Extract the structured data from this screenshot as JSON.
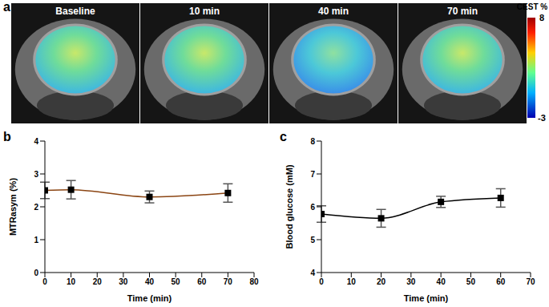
{
  "chart_data": [
    {
      "type": "image_series",
      "panel": "a",
      "frames": [
        "Baseline",
        "10 min",
        "40 min",
        "70 min"
      ],
      "colorbar_title": "CEST %",
      "colorbar_range": [
        -3,
        8
      ],
      "colorbar_ticks": [
        -3,
        8
      ]
    },
    {
      "type": "line",
      "panel": "b",
      "x": [
        0,
        10,
        40,
        70
      ],
      "values": [
        2.5,
        2.52,
        2.3,
        2.42
      ],
      "errors": [
        0.25,
        0.28,
        0.18,
        0.28
      ],
      "color": "#8b4513",
      "marker": "square",
      "line_style": "smooth",
      "x_label": "Time (min)",
      "y_label": "MTRasym (%)",
      "xlim": [
        0,
        80
      ],
      "xticks": [
        0,
        10,
        20,
        30,
        40,
        50,
        60,
        70,
        80
      ],
      "ylim": [
        0,
        4
      ],
      "yticks": [
        0,
        1,
        2,
        3,
        4
      ],
      "grid": false
    },
    {
      "type": "line",
      "panel": "c",
      "x": [
        0,
        20,
        40,
        60
      ],
      "values": [
        5.78,
        5.65,
        6.15,
        6.27
      ],
      "errors": [
        0.25,
        0.27,
        0.17,
        0.28
      ],
      "color": "#000000",
      "marker": "square",
      "line_style": "smooth",
      "x_label": "Time (min)",
      "y_label": "Blood glucose (mM)",
      "xlim": [
        0,
        70
      ],
      "xticks": [
        0,
        10,
        20,
        30,
        40,
        50,
        60,
        70
      ],
      "ylim": [
        4,
        8
      ],
      "yticks": [
        4,
        5,
        6,
        7,
        8
      ],
      "grid": false
    }
  ]
}
